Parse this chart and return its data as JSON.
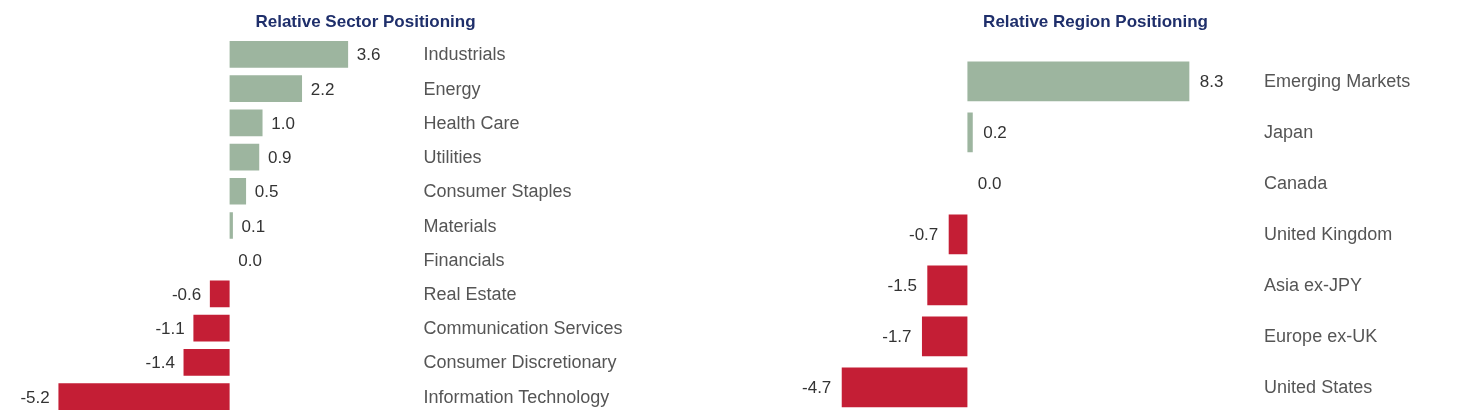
{
  "chart_data": [
    {
      "type": "bar",
      "orientation": "horizontal",
      "title": "Relative Sector Positioning",
      "categories": [
        "Industrials",
        "Energy",
        "Health Care",
        "Utilities",
        "Consumer Staples",
        "Materials",
        "Financials",
        "Real Estate",
        "Communication Services",
        "Consumer Discretionary",
        "Information Technology"
      ],
      "values": [
        3.6,
        2.2,
        1.0,
        0.9,
        0.5,
        0.1,
        0.0,
        -0.6,
        -1.1,
        -1.4,
        -5.2
      ],
      "value_labels": [
        "3.6",
        "2.2",
        "1.0",
        "0.9",
        "0.5",
        "0.1",
        "0.0",
        "-0.6",
        "-1.1",
        "-1.4",
        "-5.2"
      ],
      "colors": [
        "#9db59f",
        "#9db59f",
        "#9db59f",
        "#9db59f",
        "#9db59f",
        "#9db59f",
        "#9db59f",
        "#c41e35",
        "#c41e35",
        "#c41e35",
        "#c41e35"
      ],
      "grid": false
    },
    {
      "type": "bar",
      "orientation": "horizontal",
      "title": "Relative Region Positioning",
      "categories": [
        "Emerging Markets",
        "Japan",
        "Canada",
        "United Kingdom",
        "Asia ex-JPY",
        "Europe ex-UK",
        "United States"
      ],
      "values": [
        8.3,
        0.2,
        0.0,
        -0.7,
        -1.5,
        -1.7,
        -4.7
      ],
      "value_labels": [
        "8.3",
        "0.2",
        "0.0",
        "-0.7",
        "-1.5",
        "-1.7",
        "-4.7"
      ],
      "colors": [
        "#9db59f",
        "#9db59f",
        "#9db59f",
        "#c41e35",
        "#c41e35",
        "#c41e35",
        "#c41e35"
      ],
      "grid": false
    }
  ]
}
